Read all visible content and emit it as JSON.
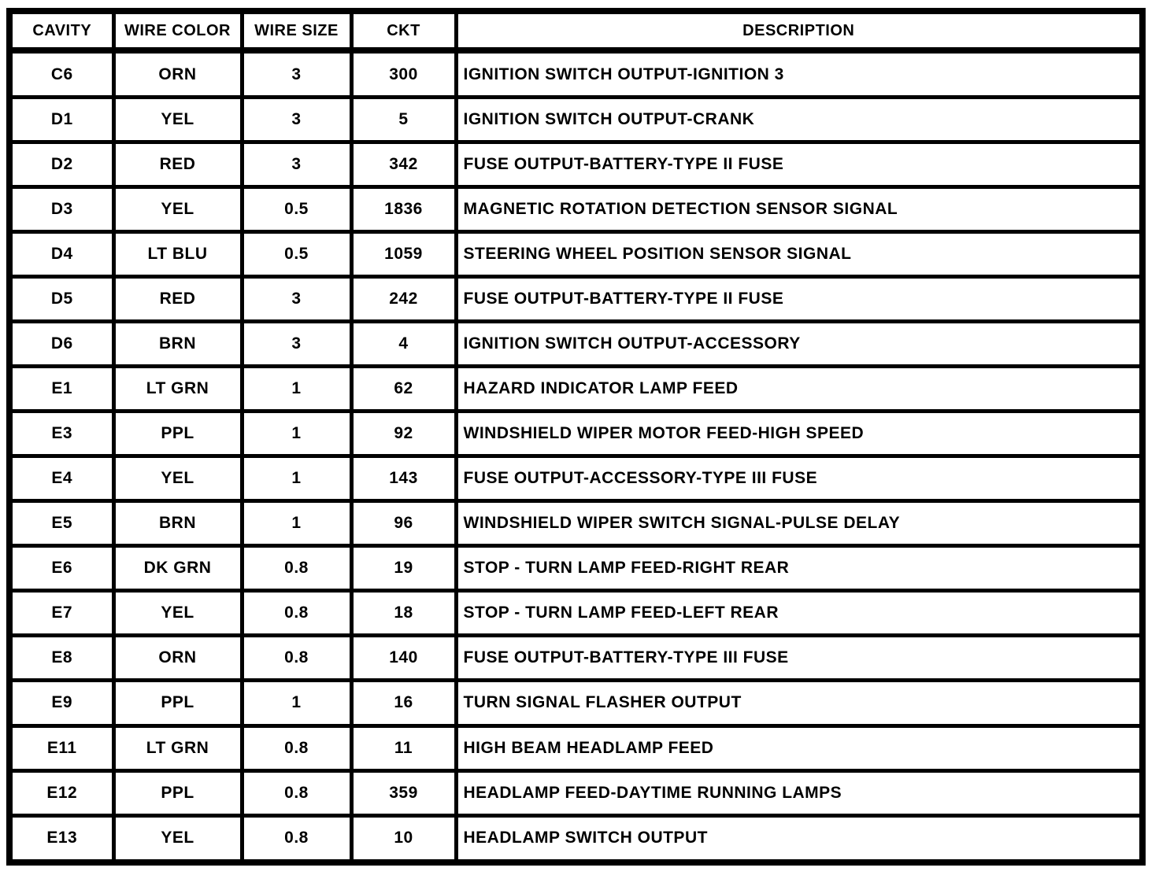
{
  "table": {
    "columns": [
      "CAVITY",
      "WIRE COLOR",
      "WIRE SIZE",
      "CKT",
      "DESCRIPTION"
    ],
    "rows": [
      {
        "cavity": "C6",
        "wire_color": "ORN",
        "wire_size": "3",
        "ckt": "300",
        "description": "IGNITION SWITCH OUTPUT-IGNITION 3"
      },
      {
        "cavity": "D1",
        "wire_color": "YEL",
        "wire_size": "3",
        "ckt": "5",
        "description": "IGNITION SWITCH OUTPUT-CRANK"
      },
      {
        "cavity": "D2",
        "wire_color": "RED",
        "wire_size": "3",
        "ckt": "342",
        "description": "FUSE OUTPUT-BATTERY-TYPE II FUSE"
      },
      {
        "cavity": "D3",
        "wire_color": "YEL",
        "wire_size": "0.5",
        "ckt": "1836",
        "description": "MAGNETIC ROTATION DETECTION SENSOR SIGNAL"
      },
      {
        "cavity": "D4",
        "wire_color": "LT BLU",
        "wire_size": "0.5",
        "ckt": "1059",
        "description": "STEERING WHEEL POSITION SENSOR SIGNAL"
      },
      {
        "cavity": "D5",
        "wire_color": "RED",
        "wire_size": "3",
        "ckt": "242",
        "description": "FUSE OUTPUT-BATTERY-TYPE II FUSE"
      },
      {
        "cavity": "D6",
        "wire_color": "BRN",
        "wire_size": "3",
        "ckt": "4",
        "description": "IGNITION SWITCH OUTPUT-ACCESSORY"
      },
      {
        "cavity": "E1",
        "wire_color": "LT GRN",
        "wire_size": "1",
        "ckt": "62",
        "description": "HAZARD INDICATOR LAMP FEED"
      },
      {
        "cavity": "E3",
        "wire_color": "PPL",
        "wire_size": "1",
        "ckt": "92",
        "description": "WINDSHIELD WIPER MOTOR FEED-HIGH SPEED"
      },
      {
        "cavity": "E4",
        "wire_color": "YEL",
        "wire_size": "1",
        "ckt": "143",
        "description": "FUSE OUTPUT-ACCESSORY-TYPE III FUSE"
      },
      {
        "cavity": "E5",
        "wire_color": "BRN",
        "wire_size": "1",
        "ckt": "96",
        "description": "WINDSHIELD WIPER SWITCH SIGNAL-PULSE DELAY"
      },
      {
        "cavity": "E6",
        "wire_color": "DK GRN",
        "wire_size": "0.8",
        "ckt": "19",
        "description": "STOP - TURN LAMP FEED-RIGHT REAR"
      },
      {
        "cavity": "E7",
        "wire_color": "YEL",
        "wire_size": "0.8",
        "ckt": "18",
        "description": "STOP - TURN LAMP FEED-LEFT REAR"
      },
      {
        "cavity": "E8",
        "wire_color": "ORN",
        "wire_size": "0.8",
        "ckt": "140",
        "description": "FUSE OUTPUT-BATTERY-TYPE III FUSE"
      },
      {
        "cavity": "E9",
        "wire_color": "PPL",
        "wire_size": "1",
        "ckt": "16",
        "description": "TURN SIGNAL FLASHER OUTPUT"
      },
      {
        "cavity": "E11",
        "wire_color": "LT GRN",
        "wire_size": "0.8",
        "ckt": "11",
        "description": "HIGH BEAM HEADLAMP FEED"
      },
      {
        "cavity": "E12",
        "wire_color": "PPL",
        "wire_size": "0.8",
        "ckt": "359",
        "description": "HEADLAMP FEED-DAYTIME RUNNING LAMPS"
      },
      {
        "cavity": "E13",
        "wire_color": "YEL",
        "wire_size": "0.8",
        "ckt": "10",
        "description": "HEADLAMP SWITCH OUTPUT"
      }
    ]
  }
}
